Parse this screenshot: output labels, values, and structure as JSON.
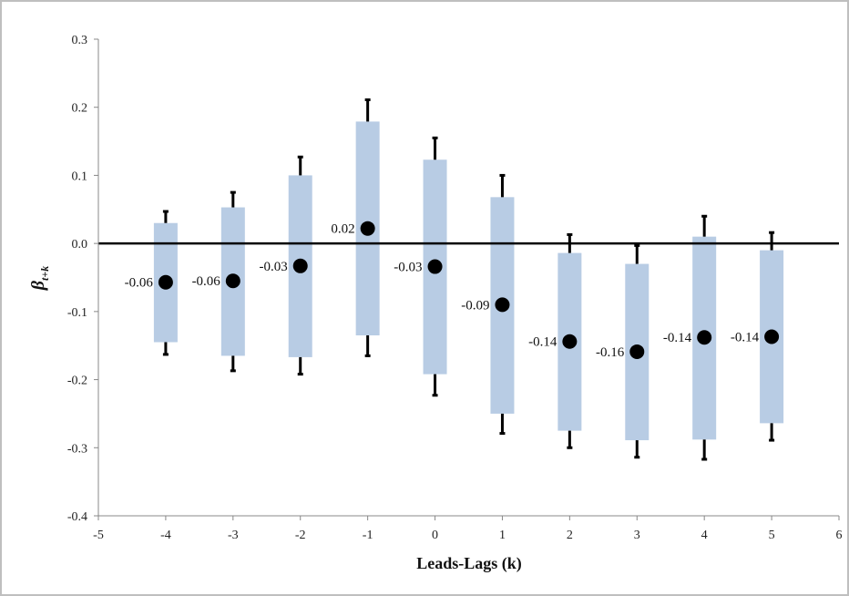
{
  "chart_data": {
    "type": "box",
    "title": "",
    "xlabel": "Leads-Lags (k)",
    "ylabel": "β",
    "ylabel_subscript": "t+k",
    "xlim": [
      -5,
      6
    ],
    "ylim": [
      -0.4,
      0.3
    ],
    "xticks": [
      "-5",
      "-4",
      "-3",
      "-2",
      "-1",
      "0",
      "1",
      "2",
      "3",
      "4",
      "5",
      "6"
    ],
    "yticks": [
      "0.3",
      "0.2",
      "0.1",
      "0.0",
      "-0.1",
      "-0.2",
      "-0.3",
      "-0.4"
    ],
    "zero_line": true,
    "grid": false,
    "colors": {
      "box": "#b8cce4",
      "point": "#000000",
      "whisker": "#000000"
    },
    "points": [
      {
        "k": -4,
        "estimate": -0.057,
        "label": "-0.06",
        "box_low": -0.145,
        "box_high": 0.03,
        "whisker_low": -0.163,
        "whisker_high": 0.047
      },
      {
        "k": -3,
        "estimate": -0.055,
        "label": "-0.06",
        "box_low": -0.165,
        "box_high": 0.053,
        "whisker_low": -0.187,
        "whisker_high": 0.075
      },
      {
        "k": -2,
        "estimate": -0.033,
        "label": "-0.03",
        "box_low": -0.167,
        "box_high": 0.1,
        "whisker_low": -0.192,
        "whisker_high": 0.127
      },
      {
        "k": -1,
        "estimate": 0.022,
        "label": "0.02",
        "box_low": -0.135,
        "box_high": 0.179,
        "whisker_low": -0.165,
        "whisker_high": 0.211
      },
      {
        "k": 0,
        "estimate": -0.034,
        "label": "-0.03",
        "box_low": -0.192,
        "box_high": 0.123,
        "whisker_low": -0.223,
        "whisker_high": 0.155
      },
      {
        "k": 1,
        "estimate": -0.09,
        "label": "-0.09",
        "box_low": -0.25,
        "box_high": 0.068,
        "whisker_low": -0.279,
        "whisker_high": 0.1
      },
      {
        "k": 2,
        "estimate": -0.144,
        "label": "-0.14",
        "box_low": -0.275,
        "box_high": -0.014,
        "whisker_low": -0.3,
        "whisker_high": 0.013
      },
      {
        "k": 3,
        "estimate": -0.159,
        "label": "-0.16",
        "box_low": -0.289,
        "box_high": -0.03,
        "whisker_low": -0.314,
        "whisker_high": -0.003
      },
      {
        "k": 4,
        "estimate": -0.138,
        "label": "-0.14",
        "box_low": -0.288,
        "box_high": 0.01,
        "whisker_low": -0.317,
        "whisker_high": 0.04
      },
      {
        "k": 5,
        "estimate": -0.137,
        "label": "-0.14",
        "box_low": -0.264,
        "box_high": -0.01,
        "whisker_low": -0.289,
        "whisker_high": 0.016
      }
    ]
  }
}
